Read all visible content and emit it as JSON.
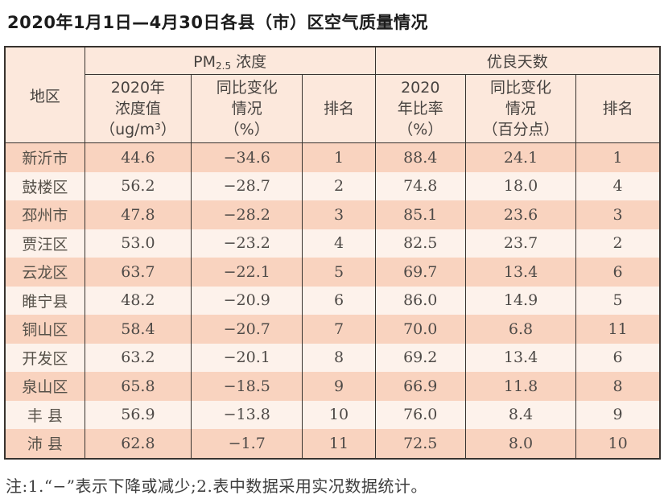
{
  "title": "2020年1月1日—4月30日各县（市）区空气质量情况",
  "table": {
    "header": {
      "region": "地区",
      "pm25_group": {
        "prefix": "PM",
        "sub": "2.5",
        "suffix": " 浓度"
      },
      "good_days_group": "优良天数",
      "pm25_value": "2020年\n浓度值\n（ug/m³）",
      "pm25_change": "同比变化\n情况\n（%）",
      "pm25_rank": "排名",
      "good_rate": "2020\n年比率\n（%）",
      "good_change": "同比变化\n情况\n（百分点）",
      "good_rank": "排名"
    },
    "rows": [
      [
        "新沂市",
        "44.6",
        "−34.6",
        "1",
        "88.4",
        "24.1",
        "1"
      ],
      [
        "鼓楼区",
        "56.2",
        "−28.7",
        "2",
        "74.8",
        "18.0",
        "4"
      ],
      [
        "邳州市",
        "47.8",
        "−28.2",
        "3",
        "85.1",
        "23.6",
        "3"
      ],
      [
        "贾汪区",
        "53.0",
        "−23.2",
        "4",
        "82.5",
        "23.7",
        "2"
      ],
      [
        "云龙区",
        "63.7",
        "−22.1",
        "5",
        "69.7",
        "13.4",
        "6"
      ],
      [
        "睢宁县",
        "48.2",
        "−20.9",
        "6",
        "86.0",
        "14.9",
        "5"
      ],
      [
        "铜山区",
        "58.4",
        "−20.7",
        "7",
        "70.0",
        "6.8",
        "11"
      ],
      [
        "开发区",
        "63.2",
        "−20.1",
        "8",
        "69.2",
        "13.4",
        "6"
      ],
      [
        "泉山区",
        "65.8",
        "−18.5",
        "9",
        "66.9",
        "11.8",
        "8"
      ],
      [
        "丰 县",
        "56.9",
        "−13.8",
        "10",
        "76.0",
        "8.4",
        "9"
      ],
      [
        "沛 县",
        "62.8",
        "−1.7",
        "11",
        "72.5",
        "8.0",
        "10"
      ]
    ]
  },
  "note": "注:1.“−”表示下降或减少;2.表中数据采用实况数据统计。",
  "colors": {
    "header_bg": "#fce8dc",
    "row_odd": "#f9d3bf",
    "row_even": "#fdf2eb",
    "border": "#38332f",
    "text": "#4b4b4b"
  }
}
